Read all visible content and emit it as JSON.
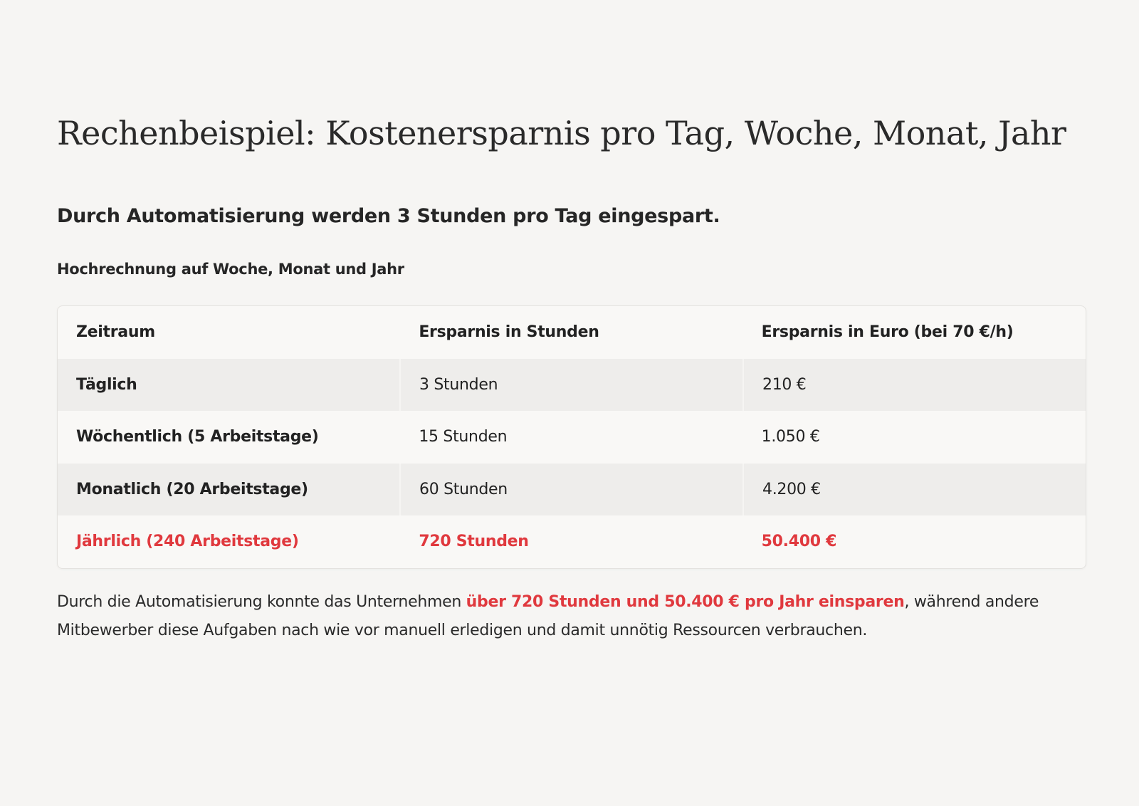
{
  "title": "Rechenbeispiel: Kostenersparnis pro Tag, Woche, Monat, Jahr",
  "subtitle": "Durch Automatisierung werden 3 Stunden pro Tag eingespart.",
  "section_heading": "Hochrechnung auf Woche, Monat und Jahr",
  "table": {
    "headers": [
      "Zeitraum",
      "Ersparnis in Stunden",
      "Ersparnis in Euro (bei 70 €/h)"
    ],
    "rows": [
      [
        "Täglich",
        "3 Stunden",
        "210 €"
      ],
      [
        "Wöchentlich (5 Arbeitstage)",
        "15 Stunden",
        "1.050 €"
      ],
      [
        "Monatlich (20 Arbeitstage)",
        "60 Stunden",
        "4.200 €"
      ],
      [
        "Jährlich (240 Arbeitstage)",
        "720 Stunden",
        "50.400 €"
      ]
    ]
  },
  "summary": {
    "before": "Durch die Automatisierung konnte das Unternehmen ",
    "highlight": "über 720 Stunden und 50.400 € pro Jahr einsparen",
    "after": ", während andere Mitbewerber diese Aufgaben nach wie vor manuell erledigen und damit unnötig Ressourcen verbrauchen."
  },
  "colors": {
    "accent": "#e0393e",
    "background": "#f6f5f3"
  }
}
